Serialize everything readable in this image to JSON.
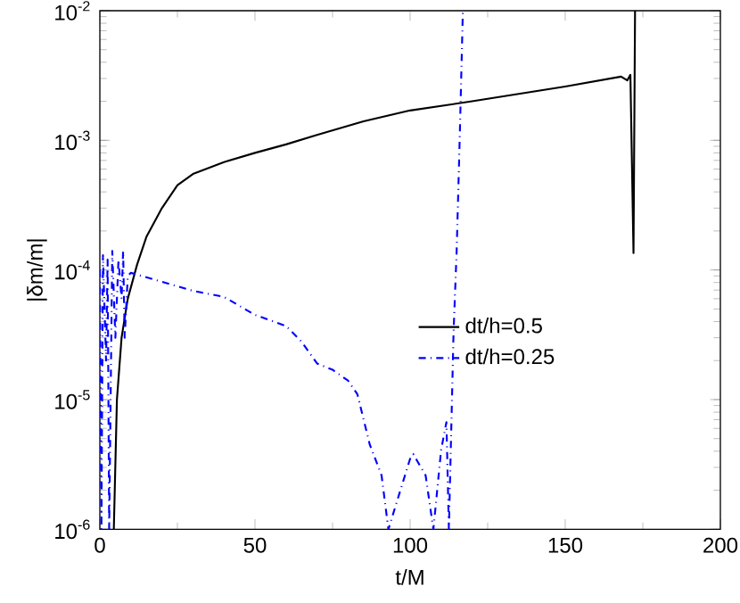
{
  "chart_data": {
    "type": "line",
    "xlabel": "t/M",
    "ylabel": "|δm/m|",
    "log": "y",
    "xlim": [
      0,
      200
    ],
    "ylim": [
      1e-06,
      0.01
    ],
    "xticks": [
      0,
      50,
      100,
      150,
      200
    ],
    "yticks": [
      {
        "value": 1e-06,
        "label": "10$^{-6}$"
      },
      {
        "value": 1e-05,
        "label": "10$^{-5}$"
      },
      {
        "value": 0.0001,
        "label": "10$^{-4}$"
      },
      {
        "value": 0.001,
        "label": "10$^{-3}$"
      },
      {
        "value": 0.01,
        "label": "10$^{-2}$"
      }
    ],
    "legend": "right",
    "grid": false,
    "series": [
      {
        "name": "dt/h=0.5",
        "color": "#000000",
        "line_style": "solid",
        "x": [
          4.5,
          5.5,
          7,
          9,
          12,
          15,
          20,
          25,
          30,
          40,
          50,
          60,
          70,
          85,
          100,
          120,
          150,
          168,
          170,
          171,
          172,
          172.5
        ],
        "values": [
          1e-06,
          1e-05,
          3e-05,
          6e-05,
          0.00011,
          0.00018,
          0.0003,
          0.00045,
          0.00055,
          0.00068,
          0.0008,
          0.00093,
          0.0011,
          0.0014,
          0.0017,
          0.002,
          0.0026,
          0.0031,
          0.0029,
          0.0032,
          0.000135,
          0.01
        ]
      },
      {
        "name": "dt/h=0.25",
        "color": "#0000ff",
        "line_style": "dashdot",
        "x": [
          0,
          0.5,
          1,
          2,
          2.5,
          3,
          4,
          5,
          6,
          7,
          7.5,
          8,
          9,
          10,
          20,
          30,
          40,
          50,
          60,
          65,
          70,
          75,
          80,
          83,
          87,
          90.8,
          93,
          100,
          101,
          105,
          107.5,
          110,
          111.7,
          112.5,
          114,
          115,
          116,
          117
        ],
        "values": [
          0.0001,
          1e-06,
          0.00013,
          2e-05,
          0.00012,
          1e-06,
          0.00014,
          3e-05,
          0.00012,
          6e-05,
          0.00014,
          3e-05,
          9e-05,
          9.5e-05,
          8.1e-05,
          6.9e-05,
          6.2e-05,
          4.5e-05,
          3.7e-05,
          2.8e-05,
          1.9e-05,
          1.7e-05,
          1.4e-05,
          1.1e-05,
          4.5e-06,
          2.6e-06,
          1e-06,
          3.5e-06,
          3.8e-06,
          2.6e-06,
          1e-06,
          4.1e-06,
          6.7e-06,
          1e-06,
          3.3e-05,
          0.00014,
          0.00106,
          0.01
        ]
      }
    ]
  }
}
